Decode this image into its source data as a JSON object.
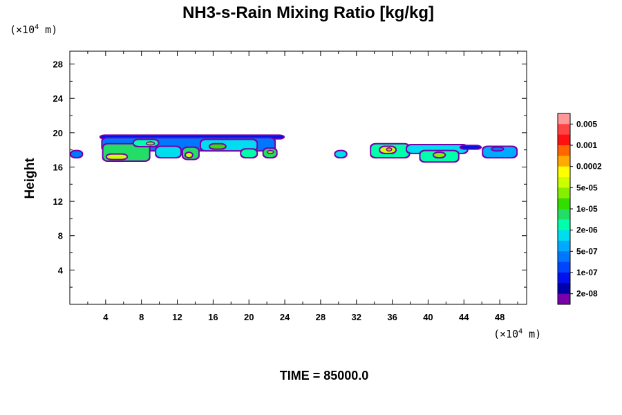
{
  "chart_data": {
    "type": "heatmap",
    "title": "NH3-s-Rain Mixing Ratio [kg/kg]",
    "ylabel": "Height",
    "x_unit_prefix": "(×10",
    "unit_exp": "4",
    "unit_suffix": " m)",
    "y_unit_prefix": "(×10",
    "xlim": [
      0,
      51
    ],
    "ylim": [
      0,
      29.5
    ],
    "xticks": [
      4,
      8,
      12,
      16,
      20,
      24,
      28,
      32,
      36,
      40,
      44,
      48
    ],
    "yticks": [
      4,
      8,
      12,
      16,
      20,
      24,
      28
    ],
    "time_label": "TIME = 85000.0",
    "colorbar": {
      "labels": [
        "0.005",
        "0.001",
        "0.0002",
        "5e-05",
        "1e-05",
        "2e-06",
        "5e-07",
        "1e-07",
        "2e-08"
      ],
      "colors": [
        "#ff9999",
        "#ff4444",
        "#ff1111",
        "#ff6600",
        "#ffaa00",
        "#ffff00",
        "#ccff00",
        "#88ee00",
        "#33dd00",
        "#22dd66",
        "#00ffaa",
        "#00ddee",
        "#00aaff",
        "#0077ff",
        "#0044ff",
        "#0011ee",
        "#0000aa",
        "#7700aa"
      ]
    },
    "clouds": [
      {
        "x0": 0.0,
        "x1": 1.5,
        "y0": 17.0,
        "y1": 18.0,
        "level": 4
      },
      {
        "x0": 3.3,
        "x1": 24.0,
        "y0": 19.2,
        "y1": 19.8,
        "level": 2
      },
      {
        "x0": 3.5,
        "x1": 23.0,
        "y0": 17.8,
        "y1": 19.5,
        "level": 4
      },
      {
        "x0": 3.6,
        "x1": 9.0,
        "y0": 16.6,
        "y1": 18.8,
        "level": 8
      },
      {
        "x0": 4.0,
        "x1": 6.5,
        "y0": 16.8,
        "y1": 17.6,
        "level": 11
      },
      {
        "x0": 7.0,
        "x1": 10.0,
        "y0": 18.3,
        "y1": 19.3,
        "level": 7
      },
      {
        "x0": 8.5,
        "x1": 9.5,
        "y0": 18.5,
        "y1": 19.0,
        "level": 10
      },
      {
        "x0": 9.5,
        "x1": 12.5,
        "y0": 17.0,
        "y1": 18.5,
        "level": 6
      },
      {
        "x0": 12.5,
        "x1": 14.5,
        "y0": 16.8,
        "y1": 18.4,
        "level": 8
      },
      {
        "x0": 12.8,
        "x1": 13.8,
        "y0": 17.0,
        "y1": 17.8,
        "level": 11
      },
      {
        "x0": 14.5,
        "x1": 21.0,
        "y0": 17.8,
        "y1": 19.3,
        "level": 6
      },
      {
        "x0": 15.5,
        "x1": 17.5,
        "y0": 18.0,
        "y1": 18.8,
        "level": 9
      },
      {
        "x0": 19.0,
        "x1": 21.0,
        "y0": 17.0,
        "y1": 18.2,
        "level": 7
      },
      {
        "x0": 21.5,
        "x1": 23.2,
        "y0": 17.0,
        "y1": 18.3,
        "level": 8
      },
      {
        "x0": 22.0,
        "x1": 22.8,
        "y0": 17.5,
        "y1": 18.0,
        "level": 10
      },
      {
        "x0": 29.5,
        "x1": 31.0,
        "y0": 17.0,
        "y1": 18.0,
        "level": 6
      },
      {
        "x0": 33.5,
        "x1": 38.0,
        "y0": 17.0,
        "y1": 18.8,
        "level": 7
      },
      {
        "x0": 34.5,
        "x1": 36.5,
        "y0": 17.5,
        "y1": 18.5,
        "level": 11
      },
      {
        "x0": 35.3,
        "x1": 36.0,
        "y0": 17.8,
        "y1": 18.3,
        "level": 13
      },
      {
        "x0": 37.5,
        "x1": 44.5,
        "y0": 17.5,
        "y1": 18.7,
        "level": 6
      },
      {
        "x0": 39.0,
        "x1": 43.5,
        "y0": 16.5,
        "y1": 18.0,
        "level": 7
      },
      {
        "x0": 40.5,
        "x1": 42.0,
        "y0": 17.0,
        "y1": 17.8,
        "level": 10
      },
      {
        "x0": 43.5,
        "x1": 46.0,
        "y0": 18.0,
        "y1": 18.6,
        "level": 2
      },
      {
        "x0": 46.0,
        "x1": 50.0,
        "y0": 17.0,
        "y1": 18.5,
        "level": 5
      },
      {
        "x0": 47.0,
        "x1": 48.5,
        "y0": 17.8,
        "y1": 18.4,
        "level": 4
      }
    ]
  }
}
